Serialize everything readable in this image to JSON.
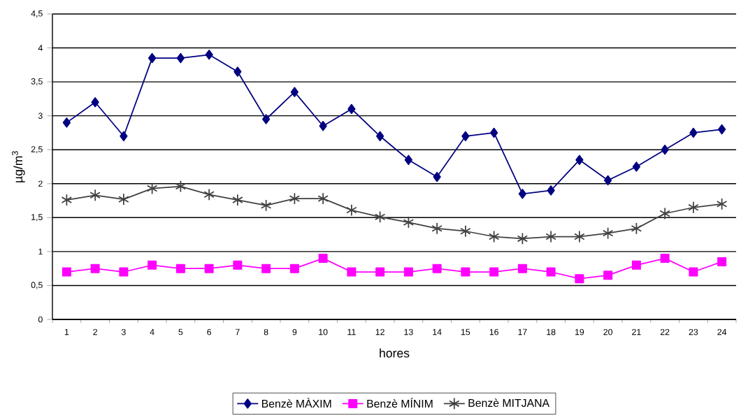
{
  "chart_data": {
    "type": "line",
    "xlabel": "hores",
    "ylabel": "µg/m$^{3}$",
    "categories": [
      "1",
      "2",
      "3",
      "4",
      "5",
      "6",
      "7",
      "8",
      "9",
      "10",
      "11",
      "12",
      "13",
      "14",
      "15",
      "16",
      "17",
      "18",
      "19",
      "20",
      "21",
      "22",
      "23",
      "24"
    ],
    "series": [
      {
        "name": "Benzè MÀXIM",
        "color": "#000080",
        "marker": "diamond",
        "values": [
          2.9,
          3.2,
          2.7,
          3.85,
          3.85,
          3.9,
          3.65,
          2.95,
          3.35,
          2.85,
          3.1,
          2.7,
          2.35,
          2.1,
          2.7,
          2.75,
          1.85,
          1.9,
          2.35,
          2.05,
          2.25,
          2.5,
          2.75,
          2.8
        ]
      },
      {
        "name": "Benzè MÍNIM",
        "color": "#ff00ff",
        "marker": "square",
        "values": [
          0.7,
          0.75,
          0.7,
          0.8,
          0.75,
          0.75,
          0.8,
          0.75,
          0.75,
          0.9,
          0.7,
          0.7,
          0.7,
          0.75,
          0.7,
          0.7,
          0.75,
          0.7,
          0.6,
          0.65,
          0.8,
          0.9,
          0.7,
          0.85
        ]
      },
      {
        "name": "Benzè MITJANA",
        "color": "#404040",
        "marker": "cross",
        "values": [
          1.76,
          1.83,
          1.77,
          1.93,
          1.96,
          1.84,
          1.76,
          1.68,
          1.78,
          1.78,
          1.61,
          1.51,
          1.43,
          1.34,
          1.3,
          1.22,
          1.19,
          1.22,
          1.22,
          1.27,
          1.34,
          1.56,
          1.65,
          1.7
        ]
      }
    ],
    "ylim": [
      0,
      4.5
    ],
    "yticks": [
      0,
      {
        "value": 0.5,
        "label": "0,5"
      },
      1,
      {
        "value": 1.5,
        "label": "1,5"
      },
      2,
      {
        "value": 2.5,
        "label": "2,5"
      },
      3,
      {
        "value": 3.5,
        "label": "3,5"
      },
      4,
      {
        "value": 4.5,
        "label": "4,5"
      }
    ],
    "grid": "y",
    "legend": "bottom",
    "line_style": "solid"
  }
}
